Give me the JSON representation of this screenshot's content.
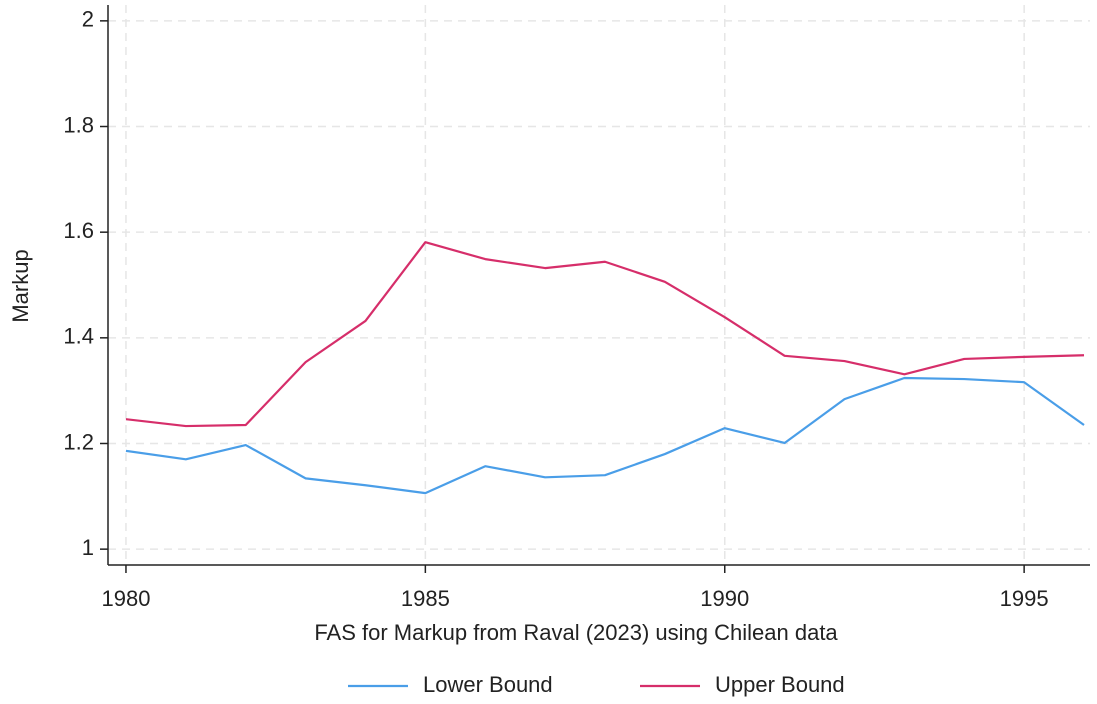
{
  "chart_data": {
    "type": "line",
    "x_label": "FAS for Markup from Raval (2023) using Chilean data",
    "y_label": "Markup",
    "x": [
      1980,
      1981,
      1982,
      1983,
      1984,
      1985,
      1986,
      1987,
      1988,
      1989,
      1990,
      1991,
      1992,
      1993,
      1994,
      1995,
      1996
    ],
    "series": [
      {
        "name": "Lower Bound",
        "color": "#4a9ee8",
        "values": [
          1.186,
          1.17,
          1.197,
          1.134,
          1.121,
          1.106,
          1.157,
          1.136,
          1.14,
          1.18,
          1.229,
          1.201,
          1.284,
          1.324,
          1.322,
          1.316,
          1.235
        ]
      },
      {
        "name": "Upper Bound",
        "color": "#d62e6a",
        "values": [
          1.246,
          1.233,
          1.235,
          1.354,
          1.432,
          1.581,
          1.549,
          1.532,
          1.544,
          1.506,
          1.439,
          1.366,
          1.356,
          1.331,
          1.36,
          1.364,
          1.367
        ]
      }
    ],
    "xlim": [
      1979.7,
      1996.1
    ],
    "xticks": [
      1980,
      1985,
      1990,
      1995
    ],
    "ylim": [
      0.97,
      2.03
    ],
    "yticks": [
      1,
      1.2,
      1.4,
      1.6,
      1.8,
      2
    ],
    "grid": true,
    "legend": "bottom"
  }
}
